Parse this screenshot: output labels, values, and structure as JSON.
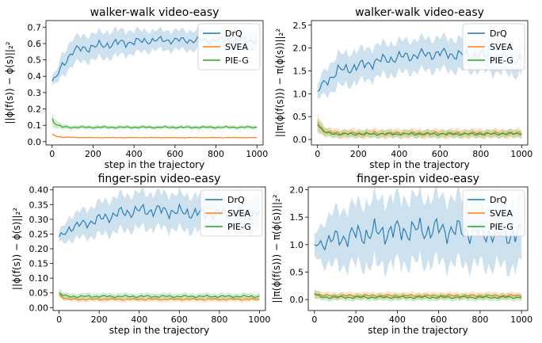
{
  "chart_data": [
    {
      "type": "line",
      "title": "walker-walk video-easy",
      "xlabel": "step in the trajectory",
      "ylabel": "||ϕ(f(s)) − ϕ(s)||₂²",
      "xlim": [
        -30,
        1030
      ],
      "ylim": [
        -0.02,
        0.74
      ],
      "xticks": [
        0,
        200,
        400,
        600,
        800,
        1000
      ],
      "yticks": [
        0.0,
        0.1,
        0.2,
        0.3,
        0.4,
        0.5,
        0.6,
        0.7
      ],
      "ytick_labels": [
        "0.0",
        "0.1",
        "0.2",
        "0.3",
        "0.4",
        "0.5",
        "0.6",
        "0.7"
      ],
      "legend": "top-right",
      "series": [
        {
          "name": "DrQ",
          "color": "#1f77b4",
          "x": [
            0,
            25,
            50,
            100,
            150,
            200,
            300,
            400,
            500,
            600,
            700,
            800,
            900,
            1000
          ],
          "values": [
            0.37,
            0.4,
            0.47,
            0.55,
            0.57,
            0.58,
            0.6,
            0.61,
            0.62,
            0.62,
            0.62,
            0.62,
            0.62,
            0.62
          ],
          "spread": [
            0.03,
            0.04,
            0.07,
            0.08,
            0.08,
            0.08,
            0.08,
            0.07,
            0.06,
            0.06,
            0.06,
            0.06,
            0.06,
            0.06
          ]
        },
        {
          "name": "SVEA",
          "color": "#ff7f0e",
          "x": [
            0,
            25,
            50,
            100,
            200,
            400,
            600,
            800,
            1000
          ],
          "values": [
            0.045,
            0.032,
            0.028,
            0.026,
            0.025,
            0.025,
            0.025,
            0.025,
            0.025
          ],
          "spread": [
            0.008,
            0.006,
            0.005,
            0.004,
            0.004,
            0.004,
            0.004,
            0.004,
            0.004
          ]
        },
        {
          "name": "PIE-G",
          "color": "#2ca02c",
          "x": [
            0,
            25,
            50,
            100,
            200,
            400,
            600,
            800,
            1000
          ],
          "values": [
            0.14,
            0.1,
            0.09,
            0.088,
            0.088,
            0.088,
            0.088,
            0.088,
            0.088
          ],
          "spread": [
            0.04,
            0.02,
            0.015,
            0.012,
            0.012,
            0.012,
            0.012,
            0.012,
            0.012
          ]
        }
      ]
    },
    {
      "type": "line",
      "title": "walker-walk video-easy",
      "xlabel": "step in the trajectory",
      "ylabel": "||π(ϕ(f(s))) − π(ϕ(s))||₂²",
      "xlim": [
        -30,
        1030
      ],
      "ylim": [
        -0.12,
        2.6
      ],
      "xticks": [
        0,
        200,
        400,
        600,
        800,
        1000
      ],
      "yticks": [
        0.0,
        0.5,
        1.0,
        1.5,
        2.0,
        2.5
      ],
      "ytick_labels": [
        "0.0",
        "0.5",
        "1.0",
        "1.5",
        "2.0",
        "2.5"
      ],
      "legend": "top-right",
      "series": [
        {
          "name": "DrQ",
          "color": "#1f77b4",
          "x": [
            0,
            25,
            50,
            100,
            200,
            300,
            400,
            500,
            600,
            700,
            800,
            900,
            1000
          ],
          "values": [
            1.05,
            1.2,
            1.3,
            1.5,
            1.6,
            1.72,
            1.8,
            1.85,
            1.88,
            1.85,
            1.85,
            1.8,
            1.75
          ],
          "spread": [
            0.15,
            0.25,
            0.3,
            0.35,
            0.35,
            0.35,
            0.35,
            0.35,
            0.35,
            0.35,
            0.35,
            0.35,
            0.35
          ]
        },
        {
          "name": "SVEA",
          "color": "#ff7f0e",
          "x": [
            0,
            25,
            50,
            100,
            200,
            400,
            600,
            800,
            1000
          ],
          "values": [
            0.38,
            0.22,
            0.15,
            0.13,
            0.13,
            0.13,
            0.13,
            0.13,
            0.13
          ],
          "spread": [
            0.2,
            0.12,
            0.1,
            0.1,
            0.1,
            0.1,
            0.1,
            0.1,
            0.1
          ]
        },
        {
          "name": "PIE-G",
          "color": "#2ca02c",
          "x": [
            0,
            25,
            50,
            100,
            200,
            400,
            600,
            800,
            1000
          ],
          "values": [
            0.32,
            0.18,
            0.14,
            0.12,
            0.12,
            0.12,
            0.12,
            0.12,
            0.13
          ],
          "spread": [
            0.15,
            0.1,
            0.08,
            0.08,
            0.08,
            0.08,
            0.08,
            0.08,
            0.08
          ]
        }
      ]
    },
    {
      "type": "line",
      "title": "finger-spin video-easy",
      "xlabel": "step in the trajectory",
      "ylabel": "||ϕ(f(s)) − ϕ(s)||₂²",
      "xlim": [
        -30,
        1030
      ],
      "ylim": [
        -0.01,
        0.41
      ],
      "xticks": [
        0,
        200,
        400,
        600,
        800,
        1000
      ],
      "yticks": [
        0.0,
        0.05,
        0.1,
        0.15,
        0.2,
        0.25,
        0.3,
        0.35,
        0.4
      ],
      "ytick_labels": [
        "0.00",
        "0.05",
        "0.10",
        "0.15",
        "0.20",
        "0.25",
        "0.30",
        "0.35",
        "0.40"
      ],
      "legend": "top-right",
      "series": [
        {
          "name": "DrQ",
          "color": "#1f77b4",
          "x": [
            0,
            25,
            50,
            100,
            150,
            200,
            300,
            400,
            500,
            600,
            700,
            800,
            900,
            1000
          ],
          "values": [
            0.24,
            0.25,
            0.27,
            0.28,
            0.29,
            0.3,
            0.32,
            0.33,
            0.33,
            0.325,
            0.32,
            0.32,
            0.32,
            0.32
          ],
          "spread": [
            0.02,
            0.03,
            0.04,
            0.045,
            0.05,
            0.055,
            0.06,
            0.06,
            0.06,
            0.06,
            0.06,
            0.06,
            0.06,
            0.06
          ]
        },
        {
          "name": "SVEA",
          "color": "#ff7f0e",
          "x": [
            0,
            25,
            50,
            100,
            200,
            400,
            600,
            800,
            1000
          ],
          "values": [
            0.045,
            0.032,
            0.028,
            0.028,
            0.028,
            0.028,
            0.028,
            0.028,
            0.028
          ],
          "spread": [
            0.01,
            0.008,
            0.008,
            0.008,
            0.008,
            0.008,
            0.008,
            0.008,
            0.008
          ]
        },
        {
          "name": "PIE-G",
          "color": "#2ca02c",
          "x": [
            0,
            25,
            50,
            100,
            200,
            400,
            600,
            800,
            1000
          ],
          "values": [
            0.05,
            0.04,
            0.038,
            0.038,
            0.038,
            0.038,
            0.038,
            0.038,
            0.038
          ],
          "spread": [
            0.015,
            0.01,
            0.01,
            0.01,
            0.01,
            0.01,
            0.01,
            0.01,
            0.01
          ]
        }
      ]
    },
    {
      "type": "line",
      "title": "finger-spin video-easy",
      "xlabel": "step in the trajectory",
      "ylabel": "||π(ϕ(f(s))) − π(ϕ(s))||₂²",
      "xlim": [
        -30,
        1030
      ],
      "ylim": [
        -0.2,
        2.05
      ],
      "xticks": [
        0,
        200,
        400,
        600,
        800,
        1000
      ],
      "yticks": [
        0.0,
        0.5,
        1.0,
        1.5,
        2.0
      ],
      "ytick_labels": [
        "0.0",
        "0.5",
        "1.0",
        "1.5",
        "2.0"
      ],
      "legend": "top-right",
      "series": [
        {
          "name": "DrQ",
          "color": "#1f77b4",
          "x": [
            0,
            25,
            50,
            100,
            200,
            300,
            400,
            500,
            600,
            700,
            800,
            900,
            1000
          ],
          "values": [
            1.0,
            1.02,
            1.05,
            1.1,
            1.18,
            1.22,
            1.25,
            1.27,
            1.27,
            1.25,
            1.22,
            1.2,
            1.18
          ],
          "spread": [
            0.2,
            0.3,
            0.4,
            0.5,
            0.55,
            0.6,
            0.6,
            0.6,
            0.6,
            0.6,
            0.6,
            0.6,
            0.6
          ]
        },
        {
          "name": "SVEA",
          "color": "#ff7f0e",
          "x": [
            0,
            25,
            50,
            100,
            200,
            400,
            600,
            800,
            1000
          ],
          "values": [
            0.12,
            0.08,
            0.07,
            0.07,
            0.07,
            0.07,
            0.07,
            0.07,
            0.07
          ],
          "spread": [
            0.08,
            0.07,
            0.06,
            0.06,
            0.06,
            0.06,
            0.06,
            0.06,
            0.06
          ]
        },
        {
          "name": "PIE-G",
          "color": "#2ca02c",
          "x": [
            0,
            25,
            50,
            100,
            200,
            400,
            600,
            800,
            1000
          ],
          "values": [
            0.1,
            0.05,
            0.04,
            0.04,
            0.04,
            0.04,
            0.04,
            0.04,
            0.04
          ],
          "spread": [
            0.08,
            0.06,
            0.06,
            0.06,
            0.06,
            0.06,
            0.06,
            0.06,
            0.06
          ]
        }
      ]
    }
  ]
}
